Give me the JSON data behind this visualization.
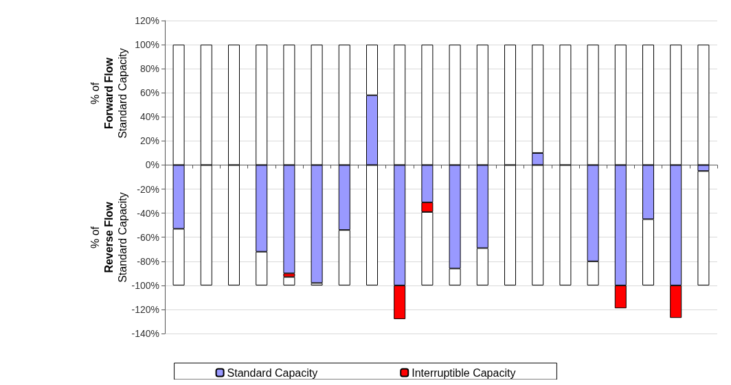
{
  "chart_data": {
    "type": "bar",
    "stacked": true,
    "ylabel": "% of\nForward Flow\nStandard Capacity",
    "annotations": [
      "% of\nReverse Flow\nStandard Capacity"
    ],
    "categories": [
      null,
      null,
      null,
      null,
      null,
      null,
      null,
      null,
      null,
      null,
      null,
      null,
      null,
      null,
      null,
      null,
      null,
      null,
      null,
      null
    ],
    "series": [
      {
        "name": "Standard Capacity",
        "color": "#9999ff",
        "values": [
          -53,
          null,
          null,
          -72,
          -90,
          -98,
          -54,
          58,
          -100,
          -31,
          -86,
          -69,
          null,
          10,
          null,
          -80,
          -100,
          -45,
          -100,
          -5
        ]
      },
      {
        "name": "Interruptible Capacity",
        "color": "#ff0000",
        "values": [
          null,
          null,
          null,
          null,
          -3,
          null,
          null,
          null,
          -28,
          -8,
          null,
          null,
          null,
          null,
          null,
          null,
          -19,
          null,
          -27,
          null
        ]
      },
      {
        "color": "#ffffff",
        "values": [
          100,
          100,
          100,
          100,
          100,
          100,
          100,
          42,
          100,
          100,
          100,
          100,
          100,
          90,
          100,
          100,
          100,
          100,
          100,
          100
        ]
      },
      {
        "color": "#ffffff",
        "values": [
          -47,
          -100,
          -100,
          -28,
          -7,
          -2,
          -46,
          -100,
          null,
          -61,
          -14,
          -31,
          -100,
          -100,
          -100,
          -20,
          null,
          -55,
          null,
          -95
        ]
      }
    ],
    "ylim": [
      -140,
      120
    ],
    "yticks": [
      {
        "value": -140,
        "label": "-140%"
      },
      {
        "value": -120,
        "label": "-120%"
      },
      {
        "value": -100,
        "label": "-100%"
      },
      {
        "value": -80,
        "label": "-80%"
      },
      {
        "value": -60,
        "label": "-60%"
      },
      {
        "value": -40,
        "label": "-40%"
      },
      {
        "value": -20,
        "label": "-20%"
      },
      {
        "value": 0,
        "label": "0%"
      },
      {
        "value": 20,
        "label": "20%"
      },
      {
        "value": 40,
        "label": "40%"
      },
      {
        "value": 60,
        "label": "60%"
      },
      {
        "value": 80,
        "label": "80%"
      },
      {
        "value": 100,
        "label": "100%"
      },
      {
        "value": 120,
        "label": "120%"
      }
    ],
    "grid": "y",
    "legend": "bottom",
    "tick_labels": "y"
  }
}
